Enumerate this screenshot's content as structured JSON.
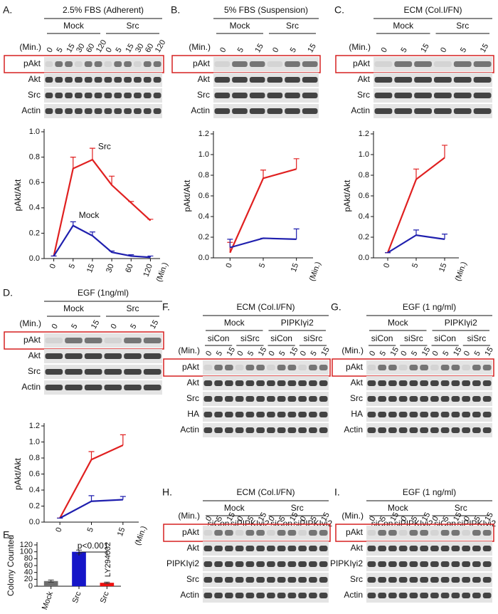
{
  "panels": [
    {
      "letter": "A.",
      "blot": {
        "title": "2.5% FBS (Adherent)",
        "groups": [
          "Mock",
          "Src"
        ],
        "time_label": "(Min.)",
        "lanes": [
          "0",
          "5",
          "15",
          "30",
          "60",
          "120",
          "0",
          "5",
          "15",
          "30",
          "60",
          "120"
        ],
        "rows": [
          "pAkt",
          "Akt",
          "Src",
          "Actin"
        ]
      }
    },
    {
      "letter": "B.",
      "blot": {
        "title": "5% FBS (Suspension)",
        "groups": [
          "Mock",
          "Src"
        ],
        "time_label": "(Min.)",
        "lanes": [
          "0",
          "5",
          "15",
          "0",
          "5",
          "15"
        ],
        "rows": [
          "pAkt",
          "Akt",
          "Src",
          "Actin"
        ]
      }
    },
    {
      "letter": "C.",
      "blot": {
        "title": "ECM (Col.I/FN)",
        "groups": [
          "Mock",
          "Src"
        ],
        "time_label": "(Min.)",
        "lanes": [
          "0",
          "5",
          "15",
          "0",
          "5",
          "15"
        ],
        "rows": [
          "pAkt",
          "Akt",
          "Src",
          "Actin"
        ]
      }
    },
    {
      "letter": "D.",
      "blot": {
        "title": "EGF (1ng/ml)",
        "groups": [
          "Mock",
          "Src"
        ],
        "time_label": "(Min.)",
        "lanes": [
          "0",
          "5",
          "15",
          "0",
          "5",
          "15"
        ],
        "rows": [
          "pAkt",
          "Akt",
          "Src",
          "Actin"
        ]
      }
    },
    {
      "letter": "E."
    },
    {
      "letter": "F.",
      "blot": {
        "title": "ECM (Col.I/FN)",
        "groups": [
          "Mock",
          "PIPKIγi2"
        ],
        "subgroups": [
          "siCon",
          "siSrc",
          "siCon",
          "siSrc"
        ],
        "time_label": "(Min.)",
        "lanes": [
          "0",
          "5",
          "15",
          "0",
          "5",
          "15",
          "0",
          "5",
          "15",
          "0",
          "5",
          "15"
        ],
        "rows": [
          "pAkt",
          "Akt",
          "Src",
          "HA",
          "Actin"
        ]
      }
    },
    {
      "letter": "G.",
      "blot": {
        "title": "EGF (1 ng/ml)",
        "groups": [
          "Mock",
          "PIPKIγi2"
        ],
        "subgroups": [
          "siCon",
          "siSrc",
          "siCon",
          "siSrc"
        ],
        "time_label": "(Min.)",
        "lanes": [
          "0",
          "5",
          "15",
          "0",
          "5",
          "15",
          "0",
          "5",
          "15",
          "0",
          "5",
          "15"
        ],
        "rows": [
          "pAkt",
          "Akt",
          "Src",
          "HA",
          "Actin"
        ]
      }
    },
    {
      "letter": "H.",
      "blot": {
        "title": "ECM (Col.I/FN)",
        "groups": [
          "Mock",
          "Src"
        ],
        "subgroups": [
          "siCon",
          "siPIPKIγi2",
          "siCon",
          "siPIPKIγi2"
        ],
        "time_label": "(Min.)",
        "lanes": [
          "0",
          "5",
          "15",
          "0",
          "5",
          "15",
          "0",
          "5",
          "15",
          "0",
          "5",
          "15"
        ],
        "rows": [
          "pAkt",
          "Akt",
          "PIPKIγi2",
          "Src",
          "Actin"
        ]
      }
    },
    {
      "letter": "I.",
      "blot": {
        "title": "EGF (1 ng/ml)",
        "groups": [
          "Mock",
          "Src"
        ],
        "subgroups": [
          "siCon",
          "siPIPKIγi2",
          "siCon",
          "siPIPKIγi2"
        ],
        "time_label": "(Min.)",
        "lanes": [
          "0",
          "5",
          "15",
          "0",
          "5",
          "15",
          "0",
          "5",
          "15",
          "0",
          "5",
          "15"
        ],
        "rows": [
          "pAkt",
          "Akt",
          "PIPKIγi2",
          "Src",
          "Actin"
        ]
      }
    }
  ],
  "chart_data": [
    {
      "type": "line",
      "y_label": "pAkt/Akt",
      "x_label": "(Min.)",
      "categories": [
        "0",
        "5",
        "15",
        "30",
        "60",
        "120"
      ],
      "ylim": [
        0,
        1
      ],
      "yticks": [
        {
          "value": 0,
          "label": "0.0"
        },
        0.2,
        0.4,
        0.6,
        0.8,
        {
          "value": 1,
          "label": "1.0"
        }
      ],
      "series": [
        {
          "name": "Src",
          "color": "#e02020",
          "values": [
            0.02,
            0.71,
            0.78,
            0.58,
            0.44,
            0.3
          ],
          "errors": [
            0,
            0.09,
            0.09,
            0.07,
            0.01,
            0.01
          ]
        },
        {
          "name": "Mock",
          "color": "#1f1fae",
          "values": [
            0.02,
            0.26,
            0.18,
            0.05,
            0.02,
            0.01
          ],
          "errors": [
            0,
            0.03,
            0.03,
            0.01,
            0.01,
            0.01
          ]
        }
      ]
    },
    {
      "type": "line",
      "y_label": "pAkt/Akt",
      "x_label": "(Min.)",
      "categories": [
        "0",
        "5",
        "15"
      ],
      "ylim": [
        0,
        1.2
      ],
      "yticks": [
        {
          "value": 0,
          "label": "0.0"
        },
        0.2,
        0.4,
        0.6,
        0.8,
        {
          "value": 1,
          "label": "1.0"
        },
        1.2
      ],
      "series": [
        {
          "color": "#e02020",
          "values": [
            0.05,
            0.77,
            0.86
          ],
          "errors": [
            0.1,
            0.08,
            0.1
          ]
        },
        {
          "color": "#1f1fae",
          "values": [
            0.1,
            0.19,
            0.18
          ],
          "errors": [
            0.08,
            0,
            0.1
          ]
        }
      ]
    },
    {
      "type": "line",
      "y_label": "pAkt/Akt",
      "x_label": "(Min.)",
      "categories": [
        "0",
        "5",
        "15"
      ],
      "ylim": [
        0,
        1.2
      ],
      "yticks": [
        {
          "value": 0,
          "label": "0.0"
        },
        0.2,
        0.4,
        0.6,
        0.8,
        {
          "value": 1,
          "label": "1.0"
        },
        1.2
      ],
      "series": [
        {
          "color": "#e02020",
          "values": [
            0.05,
            0.76,
            0.97
          ],
          "errors": [
            0,
            0.1,
            0.12
          ]
        },
        {
          "color": "#1f1fae",
          "values": [
            0.05,
            0.22,
            0.18
          ],
          "errors": [
            0,
            0.05,
            0.05
          ]
        }
      ]
    },
    {
      "type": "line",
      "y_label": "pAkt/Akt",
      "x_label": "(Min.)",
      "categories": [
        "0",
        "5",
        "15"
      ],
      "ylim": [
        0,
        1.2
      ],
      "yticks": [
        {
          "value": 0,
          "label": "0.0"
        },
        0.2,
        0.4,
        0.6,
        0.8,
        {
          "value": 1,
          "label": "1.0"
        },
        1.2
      ],
      "series": [
        {
          "color": "#e02020",
          "values": [
            0.05,
            0.78,
            0.96
          ],
          "errors": [
            0,
            0.1,
            0.13
          ]
        },
        {
          "color": "#1f1fae",
          "values": [
            0.05,
            0.26,
            0.28
          ],
          "errors": [
            0,
            0.07,
            0.04
          ]
        }
      ]
    },
    {
      "type": "bar",
      "y_label": "Colony Counted",
      "categories": [
        "Mock",
        "Src",
        "Src"
      ],
      "values": [
        15,
        100,
        10
      ],
      "errors": [
        3,
        5,
        2
      ],
      "colors": [
        "#6e6e6e",
        "#1515c8",
        "#ee1111"
      ],
      "ylim": [
        0,
        120
      ],
      "yticks": [
        0,
        20,
        40,
        60,
        80,
        100,
        120
      ],
      "annotations": [
        "LY294002",
        "p<0.001"
      ]
    }
  ]
}
